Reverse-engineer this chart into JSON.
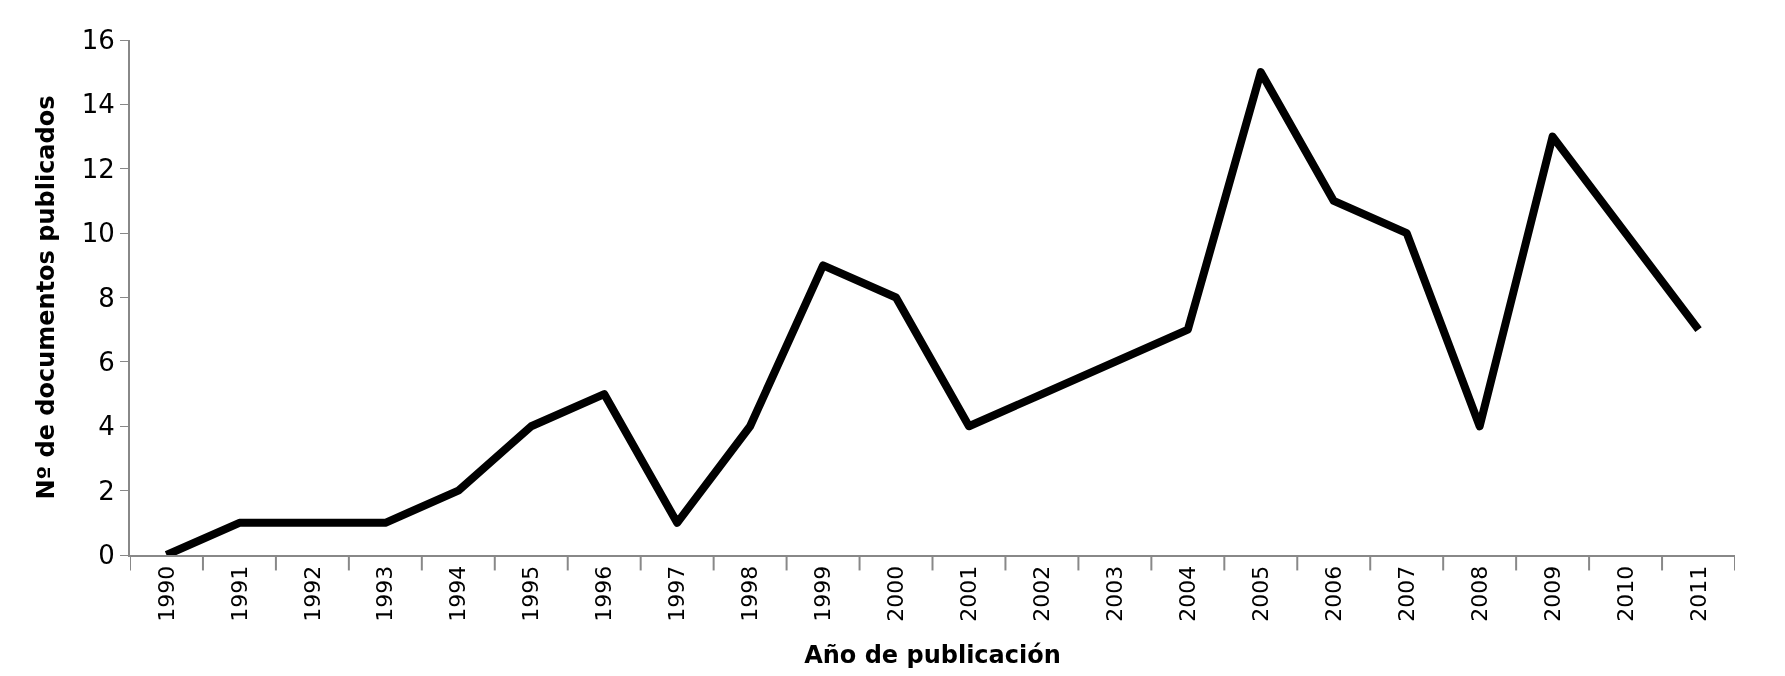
{
  "chart_data": {
    "type": "line",
    "xlabel": "Año de publicación",
    "ylabel": "Nº de documentos publicados",
    "categories": [
      "1990",
      "1991",
      "1992",
      "1993",
      "1994",
      "1995",
      "1996",
      "1997",
      "1998",
      "1999",
      "2000",
      "2001",
      "2002",
      "2003",
      "2004",
      "2005",
      "2006",
      "2007",
      "2008",
      "2009",
      "2010",
      "2011"
    ],
    "series": [
      {
        "color": "#000000",
        "values": [
          0,
          1,
          1,
          1,
          2,
          4,
          5,
          1,
          4,
          9,
          8,
          4,
          5,
          6,
          7,
          15,
          11,
          10,
          4,
          13,
          10,
          7
        ]
      }
    ],
    "ylim": [
      0,
      16
    ],
    "yticks": [
      0,
      2,
      4,
      6,
      8,
      10,
      12,
      14,
      16
    ],
    "marker": "none",
    "line_style": "solid"
  }
}
